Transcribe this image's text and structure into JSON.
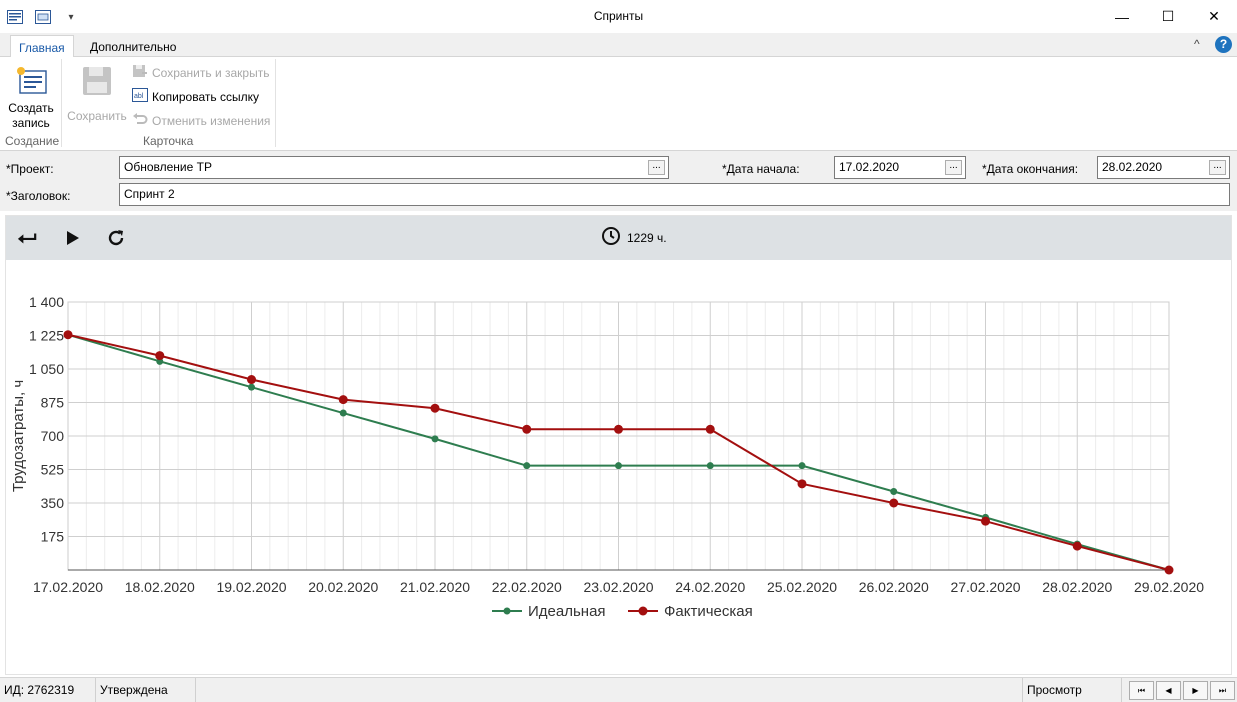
{
  "window": {
    "title": "Спринты",
    "minimize_glyph": "—",
    "maximize_glyph": "☐",
    "close_glyph": "✕"
  },
  "ribbon": {
    "tabs": [
      {
        "label": "Главная",
        "active": true
      },
      {
        "label": "Дополнительно",
        "active": false
      }
    ],
    "create_record_line1": "Создать",
    "create_record_line2": "запись",
    "save_label": "Сохранить",
    "save_close_label": "Сохранить и закрыть",
    "copy_link_label": "Копировать ссылку",
    "undo_changes_label": "Отменить изменения",
    "group_create_label": "Создание",
    "group_card_label": "Карточка",
    "help_glyph": "?",
    "collapse_glyph": "^"
  },
  "form": {
    "project_label": "*Проект:",
    "project_value": "Обновление ТР",
    "title_label": "*Заголовок:",
    "title_value": "Спринт 2",
    "start_label": "*Дата начала:",
    "start_value": "17.02.2020",
    "end_label": "*Дата окончания:",
    "end_value": "28.02.2020",
    "dots": "..."
  },
  "toolbar": {
    "hours": "1229 ч."
  },
  "colors": {
    "ideal": "#2e7d4f",
    "actual": "#a30f0f",
    "toolbar_bg": "#dde1e4",
    "accent": "#1a5aa8"
  },
  "chart_data": {
    "type": "line",
    "ylabel": "Трудозатраты, ч",
    "yticks": [
      175,
      350,
      525,
      700,
      875,
      1050,
      1225,
      1400
    ],
    "ytick_labels": [
      "175",
      "350",
      "525",
      "700",
      "875",
      "1 050",
      "1 225",
      "1 400"
    ],
    "ylim": [
      0,
      1400
    ],
    "x": [
      "17.02.2020",
      "18.02.2020",
      "19.02.2020",
      "20.02.2020",
      "21.02.2020",
      "22.02.2020",
      "23.02.2020",
      "24.02.2020",
      "25.02.2020",
      "26.02.2020",
      "27.02.2020",
      "28.02.2020",
      "29.02.2020"
    ],
    "series": [
      {
        "name": "Идеальная",
        "values": [
          1229,
          1090,
          955,
          820,
          685,
          545,
          545,
          545,
          545,
          410,
          275,
          135,
          0
        ]
      },
      {
        "name": "Фактическая",
        "values": [
          1229,
          1120,
          995,
          890,
          845,
          735,
          735,
          735,
          450,
          350,
          255,
          125,
          0
        ]
      }
    ],
    "grid": true,
    "legend_position": "bottom-center"
  },
  "status": {
    "id_text": "ИД: 2762319",
    "state": "Утверждена",
    "mode": "Просмотр",
    "nav_first": "⏮",
    "nav_prev": "◀",
    "nav_next": "▶",
    "nav_last": "⏭"
  }
}
